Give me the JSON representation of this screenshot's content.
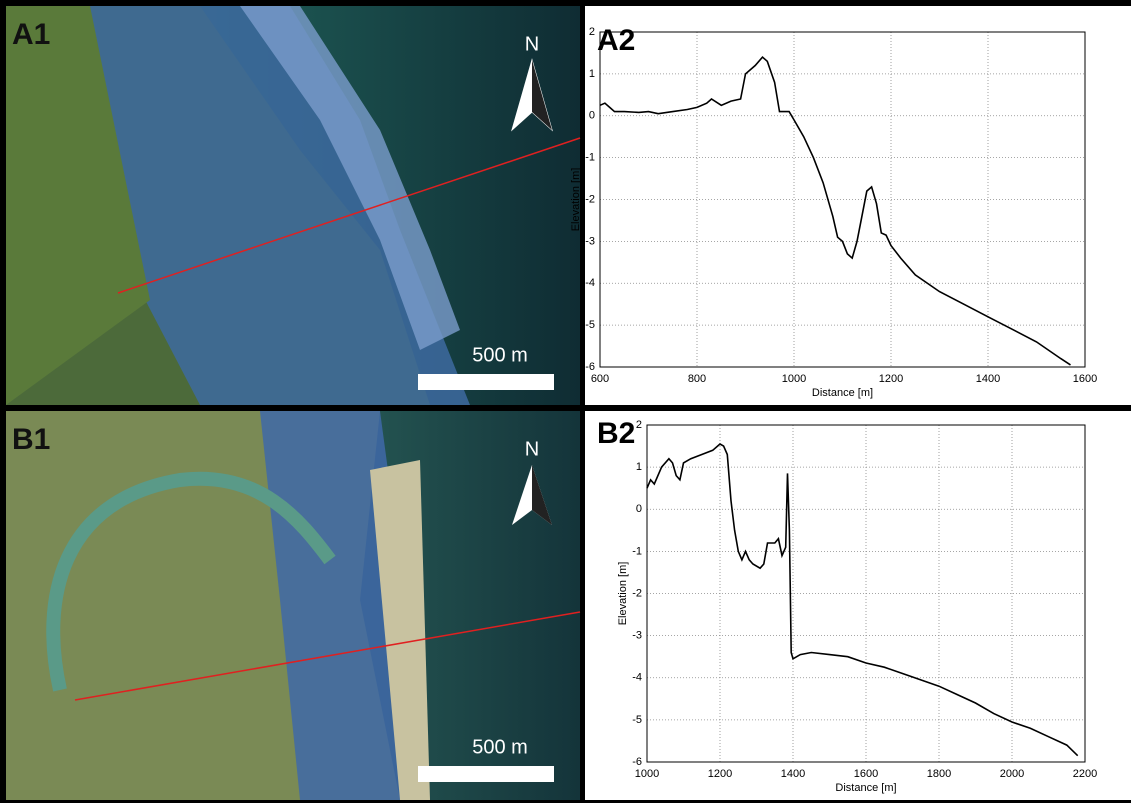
{
  "maps": [
    {
      "label": "A1",
      "north": "N",
      "scale": "500 m"
    },
    {
      "label": "B1",
      "north": "N",
      "scale": "500 m"
    }
  ],
  "chart_data": [
    {
      "type": "line",
      "title": "A2",
      "xlabel": "Distance [m]",
      "ylabel": "Elevation [m]",
      "x": [
        600,
        610,
        620,
        630,
        650,
        680,
        700,
        720,
        750,
        780,
        800,
        820,
        830,
        850,
        870,
        890,
        900,
        920,
        935,
        945,
        960,
        970,
        990,
        1000,
        1020,
        1040,
        1060,
        1080,
        1090,
        1100,
        1110,
        1120,
        1130,
        1140,
        1150,
        1160,
        1170,
        1180,
        1190,
        1200,
        1220,
        1250,
        1300,
        1350,
        1400,
        1450,
        1500,
        1550,
        1570
      ],
      "series": [
        {
          "color": "#000000",
          "values": [
            0.25,
            0.3,
            0.2,
            0.1,
            0.1,
            0.08,
            0.1,
            0.05,
            0.1,
            0.15,
            0.2,
            0.3,
            0.4,
            0.25,
            0.35,
            0.4,
            1.0,
            1.2,
            1.4,
            1.3,
            0.8,
            0.1,
            0.1,
            -0.1,
            -0.5,
            -1.0,
            -1.6,
            -2.4,
            -2.9,
            -3.0,
            -3.3,
            -3.4,
            -3.0,
            -2.4,
            -1.8,
            -1.7,
            -2.1,
            -2.8,
            -2.85,
            -3.1,
            -3.4,
            -3.8,
            -4.2,
            -4.5,
            -4.8,
            -5.1,
            -5.4,
            -5.8,
            -5.95
          ]
        }
      ],
      "xlim": [
        600,
        1600
      ],
      "xticks": [
        600,
        800,
        1000,
        1200,
        1400,
        1600
      ],
      "ylim": [
        -6,
        2
      ],
      "yticks": [
        -6,
        -5,
        -4,
        -3,
        -2,
        -1,
        0,
        1,
        2
      ],
      "grid": true
    },
    {
      "type": "line",
      "title": "B2",
      "xlabel": "Distance [m]",
      "ylabel": "Elevation [m]",
      "x": [
        1000,
        1010,
        1020,
        1040,
        1060,
        1070,
        1080,
        1090,
        1100,
        1120,
        1150,
        1180,
        1200,
        1210,
        1220,
        1230,
        1240,
        1250,
        1260,
        1270,
        1280,
        1290,
        1310,
        1320,
        1330,
        1350,
        1360,
        1370,
        1380,
        1385,
        1390,
        1395,
        1400,
        1420,
        1450,
        1500,
        1550,
        1600,
        1650,
        1700,
        1750,
        1800,
        1850,
        1900,
        1950,
        2000,
        2050,
        2100,
        2150,
        2180
      ],
      "series": [
        {
          "color": "#000000",
          "values": [
            0.5,
            0.7,
            0.6,
            1.0,
            1.2,
            1.1,
            0.8,
            0.7,
            1.1,
            1.2,
            1.3,
            1.4,
            1.55,
            1.5,
            1.3,
            0.2,
            -0.5,
            -1.0,
            -1.2,
            -1.0,
            -1.2,
            -1.3,
            -1.4,
            -1.3,
            -0.8,
            -0.8,
            -0.7,
            -1.1,
            -0.9,
            0.85,
            -0.5,
            -3.4,
            -3.55,
            -3.45,
            -3.4,
            -3.45,
            -3.5,
            -3.65,
            -3.75,
            -3.9,
            -4.05,
            -4.2,
            -4.4,
            -4.6,
            -4.85,
            -5.05,
            -5.2,
            -5.4,
            -5.6,
            -5.85
          ]
        }
      ],
      "xlim": [
        1000,
        2200
      ],
      "xticks": [
        1000,
        1200,
        1400,
        1600,
        1800,
        2000,
        2200
      ],
      "ylim": [
        -6,
        2
      ],
      "yticks": [
        -6,
        -5,
        -4,
        -3,
        -2,
        -1,
        0,
        1,
        2
      ],
      "grid": true
    }
  ]
}
